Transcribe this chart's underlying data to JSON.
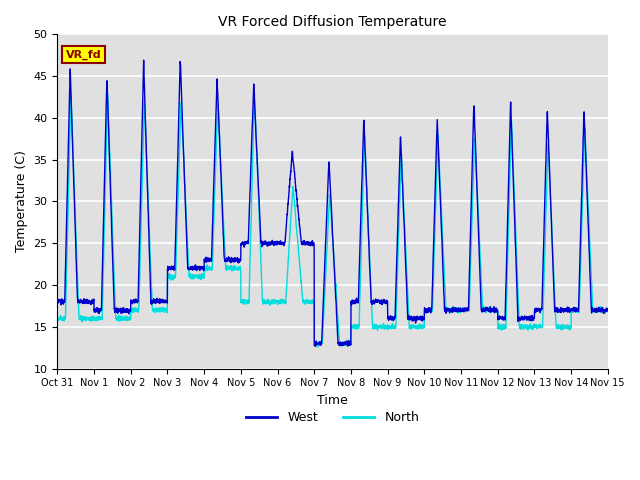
{
  "title": "VR Forced Diffusion Temperature",
  "xlabel": "Time",
  "ylabel": "Temperature (C)",
  "ylim": [
    10,
    50
  ],
  "yticks": [
    10,
    15,
    20,
    25,
    30,
    35,
    40,
    45,
    50
  ],
  "xtick_labels": [
    "Oct 31",
    "Nov 1",
    "Nov 2",
    "Nov 3",
    "Nov 4",
    "Nov 5",
    "Nov 6",
    "Nov 7",
    "Nov 8",
    "Nov 9",
    "Nov 10",
    "Nov 11",
    "Nov 12",
    "Nov 13",
    "Nov 14",
    "Nov 15"
  ],
  "west_color": "#0000CC",
  "north_color": "#00DDDD",
  "bg_color": "#E0E0E0",
  "annotation_text": "VR_fd",
  "annotation_bg": "#FFFF00",
  "annotation_border": "#8B0000",
  "annotation_text_color": "#8B0000",
  "day_peaks_west": [
    46,
    45,
    47,
    47,
    45,
    44,
    36,
    35,
    40,
    38,
    40,
    42,
    42,
    41,
    41
  ],
  "day_peaks_north": [
    43,
    43,
    42,
    42,
    42,
    43,
    32,
    31,
    38,
    36,
    38,
    38,
    40,
    37,
    39
  ],
  "day_mins_west": [
    18,
    17,
    18,
    22,
    23,
    25,
    25,
    13,
    18,
    16,
    17,
    17,
    16,
    17,
    17
  ],
  "day_mins_north": [
    16,
    16,
    17,
    21,
    22,
    18,
    18,
    13,
    15,
    15,
    17,
    17,
    15,
    15,
    17
  ],
  "peak_position": [
    0.35,
    0.35,
    0.35,
    0.35,
    0.35,
    0.35,
    0.4,
    0.4,
    0.35,
    0.35,
    0.35,
    0.35,
    0.35,
    0.35,
    0.35
  ],
  "rise_width": [
    0.15,
    0.15,
    0.15,
    0.15,
    0.15,
    0.15,
    0.2,
    0.2,
    0.15,
    0.15,
    0.15,
    0.15,
    0.15,
    0.15,
    0.15
  ],
  "fall_width": [
    0.2,
    0.2,
    0.2,
    0.2,
    0.2,
    0.2,
    0.25,
    0.25,
    0.2,
    0.2,
    0.2,
    0.2,
    0.2,
    0.2,
    0.2
  ]
}
